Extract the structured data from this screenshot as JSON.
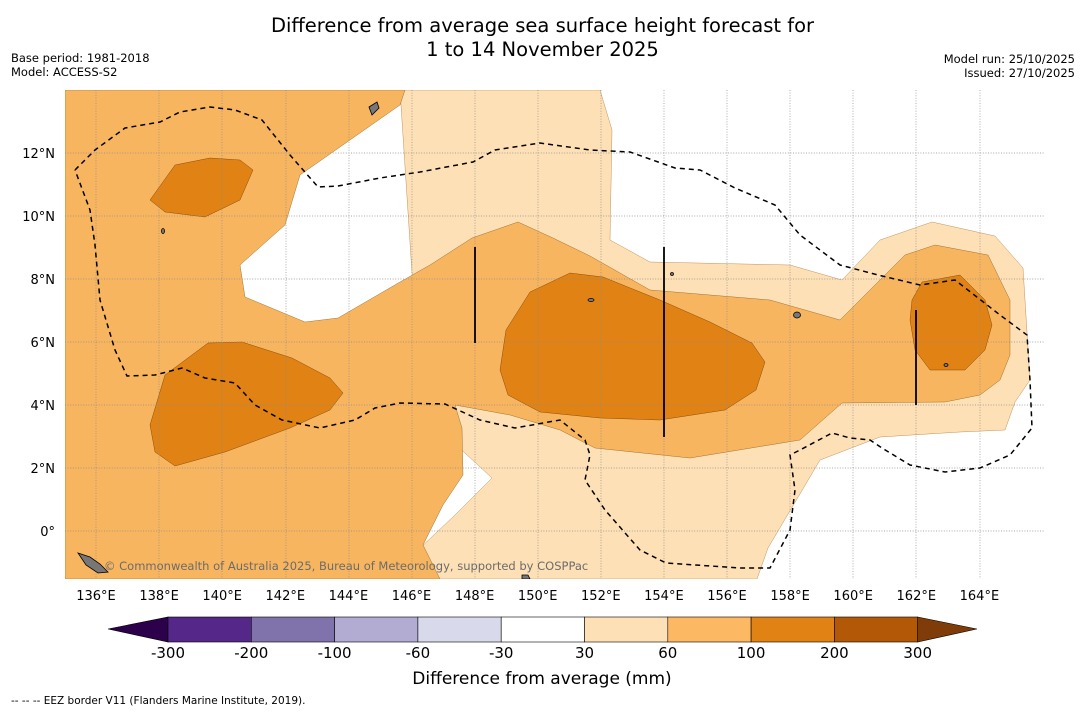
{
  "title": {
    "line1": "Difference from average sea surface height forecast for",
    "line2": "1 to 14 November 2025"
  },
  "meta": {
    "base_period": "Base period: 1981-2018",
    "model": "Model: ACCESS-S2",
    "model_run": "Model run: 25/10/2025",
    "issued": "Issued: 27/10/2025"
  },
  "map": {
    "lon_range": [
      135,
      166
    ],
    "lat_range": [
      -1.5,
      14
    ],
    "lon_ticks": [
      "136°E",
      "138°E",
      "140°E",
      "142°E",
      "144°E",
      "146°E",
      "148°E",
      "150°E",
      "152°E",
      "154°E",
      "156°E",
      "158°E",
      "160°E",
      "162°E",
      "164°E"
    ],
    "lat_ticks": [
      "12°N",
      "10°N",
      "8°N",
      "6°N",
      "4°N",
      "2°N",
      "0°"
    ],
    "attribution": "© Commonwealth of Australia 2025, Bureau of Meteorology, supported by COSPPac"
  },
  "legend": {
    "title": "Difference from average (mm)",
    "tick_labels": [
      "-300",
      "-200",
      "-100",
      "-60",
      "-30",
      "30",
      "60",
      "100",
      "200",
      "300"
    ],
    "colors": [
      "#2d004b",
      "#542788",
      "#8073ac",
      "#b2abd2",
      "#d8daeb",
      "#ffffff",
      "#fee0b6",
      "#fdb863",
      "#e08214",
      "#b35806",
      "#7f3b08"
    ]
  },
  "colors": {
    "band_30_60": "#fee0b6",
    "band_60_100": "#f8b55f",
    "band_100_200": "#e08214"
  },
  "footnote": "--  --  -- EEZ border V11 (Flanders Marine Institute, 2019)."
}
